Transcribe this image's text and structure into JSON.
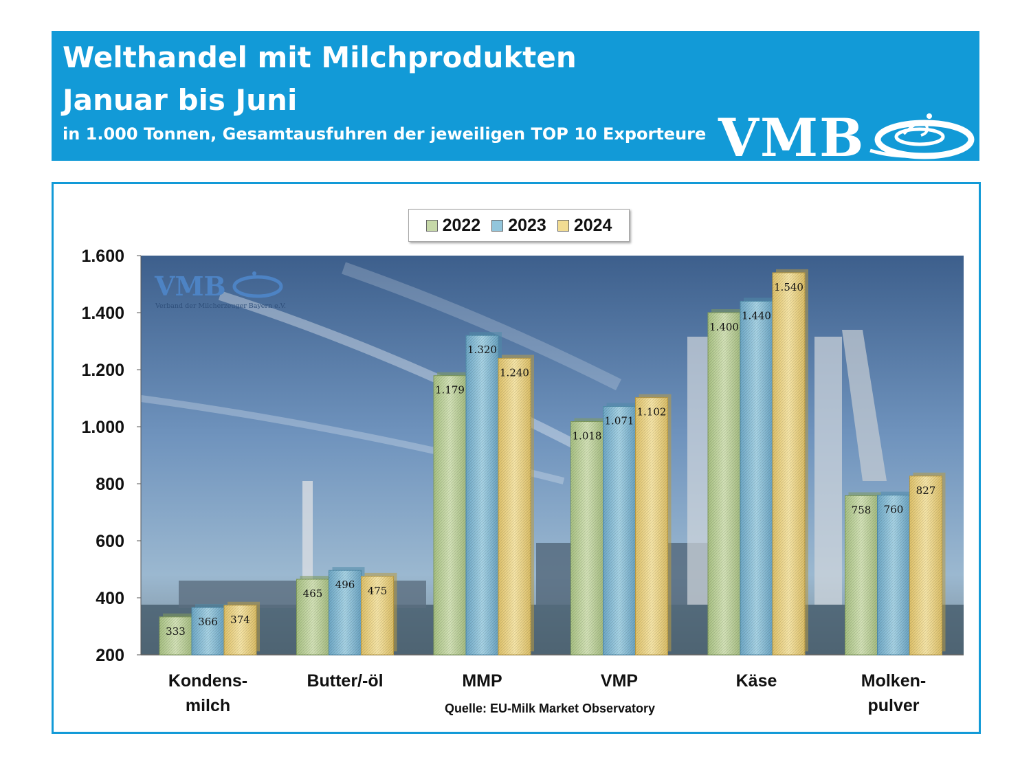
{
  "header": {
    "title_line1": "Welthandel mit Milchprodukten",
    "title_line2": "Januar bis Juni",
    "subtitle": "in 1.000 Tonnen,  Gesamtausfuhren der jeweiligen TOP 10 Exporteure",
    "logo_text": "VMB"
  },
  "watermark": {
    "logo_text": "VMB",
    "tagline": "Verband der Milcherzeuger Bayern e.V."
  },
  "colors": {
    "header_bg": "#129ad7",
    "frame_border": "#129ad7",
    "series_2022": "#c6d8a8",
    "series_2023": "#93c6dc",
    "series_2024": "#f2dc92"
  },
  "chart_data": {
    "type": "bar",
    "title": "",
    "source_note": "Quelle: EU-Milk  Market Observatory",
    "categories": [
      [
        "Kondens-",
        "milch"
      ],
      [
        "Butter/-öl"
      ],
      [
        "MMP"
      ],
      [
        "VMP"
      ],
      [
        "Käse"
      ],
      [
        "Molken-",
        "pulver"
      ]
    ],
    "series": [
      {
        "name": "2022",
        "values": [
          333,
          465,
          1179,
          1018,
          1400,
          758
        ],
        "labels": [
          "333",
          "465",
          "1.179",
          "1.018",
          "1.400",
          "758"
        ]
      },
      {
        "name": "2023",
        "values": [
          366,
          496,
          1320,
          1071,
          1440,
          760
        ],
        "labels": [
          "366",
          "496",
          "1.320",
          "1.071",
          "1.440",
          "760"
        ]
      },
      {
        "name": "2024",
        "values": [
          374,
          475,
          1240,
          1102,
          1540,
          827
        ],
        "labels": [
          "374",
          "475",
          "1.240",
          "1.102",
          "1.540",
          "827"
        ]
      }
    ],
    "ylim": [
      200,
      1600
    ],
    "yticks": [
      200,
      400,
      600,
      800,
      1000,
      1200,
      1400,
      1600
    ],
    "ytick_labels": [
      "200",
      "400",
      "600",
      "800",
      "1.000",
      "1.200",
      "1.400",
      "1.600"
    ],
    "legend_position": "top-center",
    "grid": false
  }
}
